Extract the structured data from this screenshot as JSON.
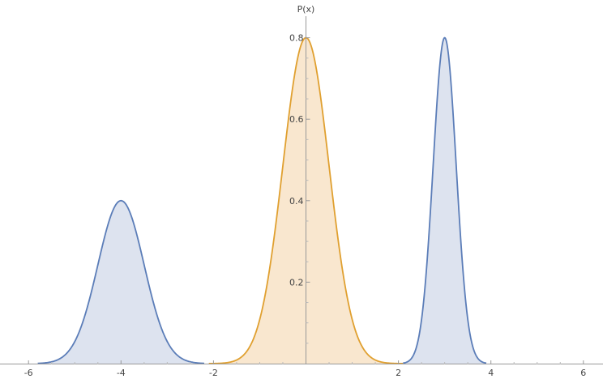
{
  "chart_data": {
    "type": "area",
    "title": "",
    "xlabel": "",
    "ylabel": "P(x)",
    "xlim": [
      -6.2,
      6.3
    ],
    "ylim": [
      0,
      0.8
    ],
    "x_ticks": [
      -6,
      -4,
      -2,
      2,
      4,
      6
    ],
    "x_tick_labels": [
      "-6",
      "-4",
      "-2",
      "2",
      "4",
      "6"
    ],
    "y_ticks": [
      0.2,
      0.4,
      0.6,
      0.8
    ],
    "y_tick_labels": [
      "0.2",
      "0.4",
      "0.6",
      "0.8"
    ],
    "grid": false,
    "series": [
      {
        "mean": -4,
        "sd": 0.5,
        "peak": 0.4,
        "color": "#5b7db8",
        "fill": "#dde3ef",
        "x_range": [
          -5.8,
          -2.2
        ]
      },
      {
        "mean": 0,
        "sd": 0.5,
        "peak": 0.8,
        "color": "#e0a030",
        "fill": "#f9e7cf",
        "x_range": [
          -2.1,
          2.1
        ]
      },
      {
        "mean": 3,
        "sd": 0.25,
        "peak": 0.8,
        "color": "#5b7db8",
        "fill": "#dde3ef",
        "x_range": [
          2.1,
          3.9
        ]
      }
    ]
  }
}
